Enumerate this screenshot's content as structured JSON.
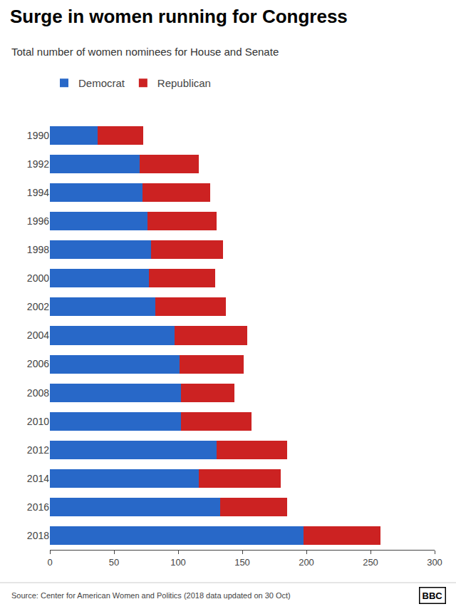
{
  "chart_data": {
    "type": "bar",
    "orientation": "horizontal",
    "stacked": true,
    "title": "Surge in women running for Congress",
    "subtitle": "Total number of women nominees for House and Senate",
    "source": "Source: Center for American Women and Politics (2018 data updated on 30 Oct)",
    "annotations": [
      "BBC"
    ],
    "categories": [
      "1990",
      "1992",
      "1994",
      "1996",
      "1998",
      "2000",
      "2002",
      "2004",
      "2006",
      "2008",
      "2010",
      "2012",
      "2014",
      "2016",
      "2018"
    ],
    "series": [
      {
        "name": "Democrat",
        "color": "#2868C8",
        "values": [
          37,
          70,
          72,
          76,
          79,
          77,
          82,
          97,
          101,
          102,
          102,
          130,
          116,
          133,
          198
        ]
      },
      {
        "name": "Republican",
        "color": "#CC2222",
        "values": [
          36,
          46,
          53,
          54,
          56,
          52,
          55,
          57,
          50,
          42,
          55,
          55,
          64,
          52,
          60
        ]
      }
    ],
    "xlim": [
      0,
      300
    ],
    "xticks": [
      0,
      50,
      100,
      150,
      200,
      250,
      300
    ],
    "grid": false,
    "legend": "upper left"
  }
}
